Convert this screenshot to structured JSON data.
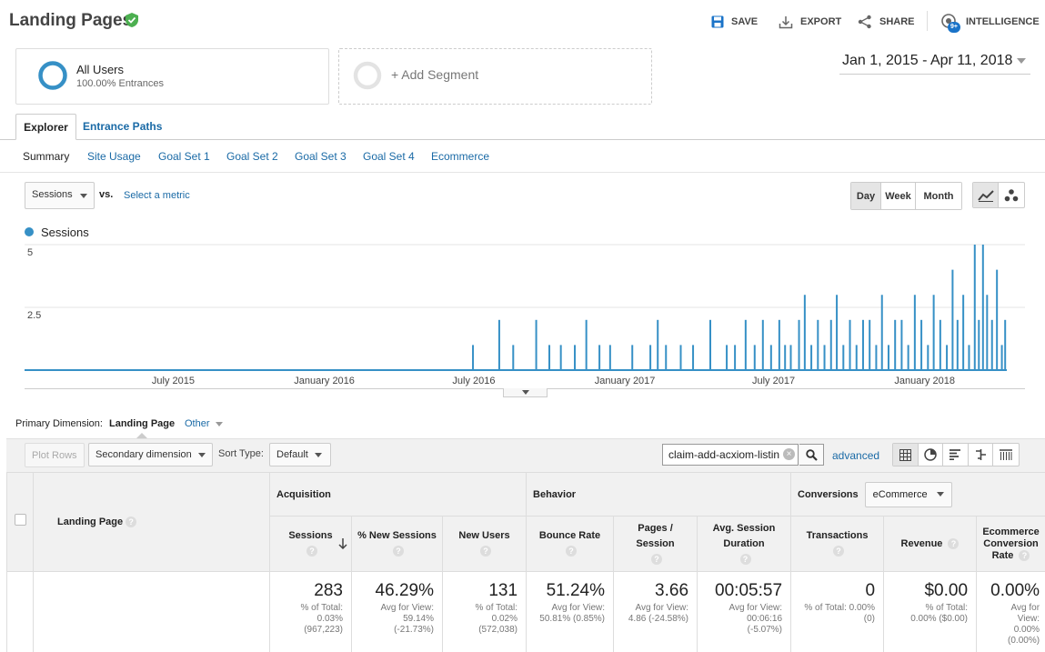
{
  "header": {
    "title": "Landing Pages",
    "actions": [
      {
        "label": "SAVE",
        "icon": "save-icon"
      },
      {
        "label": "EXPORT",
        "icon": "export-icon"
      },
      {
        "label": "SHARE",
        "icon": "share-icon"
      },
      {
        "label": "INTELLIGENCE",
        "icon": "intelligence-icon",
        "badge": "9+"
      }
    ]
  },
  "segments": {
    "active": {
      "name": "All Users",
      "subtitle": "100.00% Entrances"
    },
    "add_label": "+ Add Segment"
  },
  "date_range": "Jan 1, 2015 - Apr 11, 2018",
  "tabs": [
    "Explorer",
    "Entrance Paths"
  ],
  "subtabs": [
    "Summary",
    "Site Usage",
    "Goal Set 1",
    "Goal Set 2",
    "Goal Set 3",
    "Goal Set 4",
    "Ecommerce"
  ],
  "chart_controls": {
    "metric": "Sessions",
    "vs_label": "vs.",
    "select_metric": "Select a metric",
    "periods": [
      "Day",
      "Week",
      "Month"
    ],
    "active_period": "Day"
  },
  "colors": {
    "accent": "#1a6aa6",
    "series": "#3690c6",
    "verified": "#4caf50",
    "save": "#1a73c8"
  },
  "chart_data": {
    "type": "line",
    "series": [
      {
        "name": "Sessions"
      }
    ],
    "y_ticks": [
      "5",
      "2.5"
    ],
    "ylim": [
      0,
      5
    ],
    "x_ticks": [
      "July 2015",
      "January 2016",
      "July 2016",
      "January 2017",
      "July 2017",
      "January 2018"
    ],
    "x_range": [
      "2015-01-01",
      "2018-04-11"
    ],
    "points": [
      {
        "date": "2016-06-30",
        "value": 1
      },
      {
        "date": "2016-08-01",
        "value": 2
      },
      {
        "date": "2016-08-18",
        "value": 1
      },
      {
        "date": "2016-09-15",
        "value": 2
      },
      {
        "date": "2016-10-01",
        "value": 1
      },
      {
        "date": "2016-10-15",
        "value": 1
      },
      {
        "date": "2016-11-01",
        "value": 1
      },
      {
        "date": "2016-11-15",
        "value": 2
      },
      {
        "date": "2016-12-01",
        "value": 1
      },
      {
        "date": "2016-12-14",
        "value": 1
      },
      {
        "date": "2017-01-10",
        "value": 1
      },
      {
        "date": "2017-02-01",
        "value": 1
      },
      {
        "date": "2017-02-10",
        "value": 2
      },
      {
        "date": "2017-02-20",
        "value": 1
      },
      {
        "date": "2017-03-10",
        "value": 1
      },
      {
        "date": "2017-03-25",
        "value": 1
      },
      {
        "date": "2017-04-15",
        "value": 2
      },
      {
        "date": "2017-05-05",
        "value": 1
      },
      {
        "date": "2017-05-15",
        "value": 1
      },
      {
        "date": "2017-05-28",
        "value": 2
      },
      {
        "date": "2017-06-08",
        "value": 1
      },
      {
        "date": "2017-06-18",
        "value": 2
      },
      {
        "date": "2017-06-28",
        "value": 1
      },
      {
        "date": "2017-07-08",
        "value": 2
      },
      {
        "date": "2017-07-15",
        "value": 1
      },
      {
        "date": "2017-07-22",
        "value": 1
      },
      {
        "date": "2017-08-01",
        "value": 2
      },
      {
        "date": "2017-08-08",
        "value": 3
      },
      {
        "date": "2017-08-16",
        "value": 1
      },
      {
        "date": "2017-08-24",
        "value": 2
      },
      {
        "date": "2017-09-01",
        "value": 1
      },
      {
        "date": "2017-09-09",
        "value": 2
      },
      {
        "date": "2017-09-16",
        "value": 3
      },
      {
        "date": "2017-09-24",
        "value": 1
      },
      {
        "date": "2017-10-02",
        "value": 2
      },
      {
        "date": "2017-10-10",
        "value": 1
      },
      {
        "date": "2017-10-18",
        "value": 2
      },
      {
        "date": "2017-10-26",
        "value": 2
      },
      {
        "date": "2017-11-03",
        "value": 1
      },
      {
        "date": "2017-11-10",
        "value": 3
      },
      {
        "date": "2017-11-18",
        "value": 1
      },
      {
        "date": "2017-11-26",
        "value": 2
      },
      {
        "date": "2017-12-04",
        "value": 2
      },
      {
        "date": "2017-12-12",
        "value": 1
      },
      {
        "date": "2017-12-20",
        "value": 3
      },
      {
        "date": "2017-12-28",
        "value": 2
      },
      {
        "date": "2018-01-05",
        "value": 1
      },
      {
        "date": "2018-01-12",
        "value": 3
      },
      {
        "date": "2018-01-20",
        "value": 2
      },
      {
        "date": "2018-01-28",
        "value": 1
      },
      {
        "date": "2018-02-04",
        "value": 4
      },
      {
        "date": "2018-02-10",
        "value": 2
      },
      {
        "date": "2018-02-17",
        "value": 3
      },
      {
        "date": "2018-02-24",
        "value": 1
      },
      {
        "date": "2018-03-03",
        "value": 5
      },
      {
        "date": "2018-03-08",
        "value": 2
      },
      {
        "date": "2018-03-13",
        "value": 5
      },
      {
        "date": "2018-03-18",
        "value": 3
      },
      {
        "date": "2018-03-24",
        "value": 2
      },
      {
        "date": "2018-03-30",
        "value": 4
      },
      {
        "date": "2018-04-05",
        "value": 1
      },
      {
        "date": "2018-04-09",
        "value": 2
      }
    ]
  },
  "primary_dimension": {
    "label": "Primary Dimension:",
    "active": "Landing Page",
    "other": "Other"
  },
  "table_toolbar": {
    "plot_rows": "Plot Rows",
    "secondary_dimension": "Secondary dimension",
    "sort_type_label": "Sort Type:",
    "sort_type": "Default",
    "search_value": "claim-add-acxiom-listin",
    "advanced": "advanced"
  },
  "table": {
    "dimension_header": "Landing Page",
    "groups": [
      "Acquisition",
      "Behavior",
      "Conversions"
    ],
    "conversions_select": "eCommerce",
    "columns": [
      {
        "label": "Sessions",
        "value": "283",
        "sub": [
          "% of Total:",
          "0.03%",
          "(967,223)"
        ]
      },
      {
        "label": "% New Sessions",
        "value": "46.29%",
        "sub": [
          "Avg for View:",
          "59.14%",
          "(-21.73%)"
        ]
      },
      {
        "label": "New Users",
        "value": "131",
        "sub": [
          "% of Total:",
          "0.02%",
          "(572,038)"
        ]
      },
      {
        "label": "Bounce Rate",
        "value": "51.24%",
        "sub": [
          "Avg for View:",
          "50.81% (0.85%)"
        ]
      },
      {
        "label": "Pages / Session",
        "value": "3.66",
        "sub": [
          "Avg for View:",
          "4.86 (-24.58%)"
        ]
      },
      {
        "label": "Avg. Session Duration",
        "value": "00:05:57",
        "sub": [
          "Avg for View:",
          "00:06:16",
          "(-5.07%)"
        ]
      },
      {
        "label": "Transactions",
        "value": "0",
        "sub": [
          "% of Total: 0.00%",
          "(0)"
        ]
      },
      {
        "label": "Revenue",
        "value": "$0.00",
        "sub": [
          "% of Total:",
          "0.00% ($0.00)"
        ]
      },
      {
        "label": "Ecommerce Conversion Rate",
        "value": "0.00%",
        "sub": [
          "Avg for",
          "View:",
          "0.00%",
          "(0.00%)"
        ]
      }
    ]
  }
}
